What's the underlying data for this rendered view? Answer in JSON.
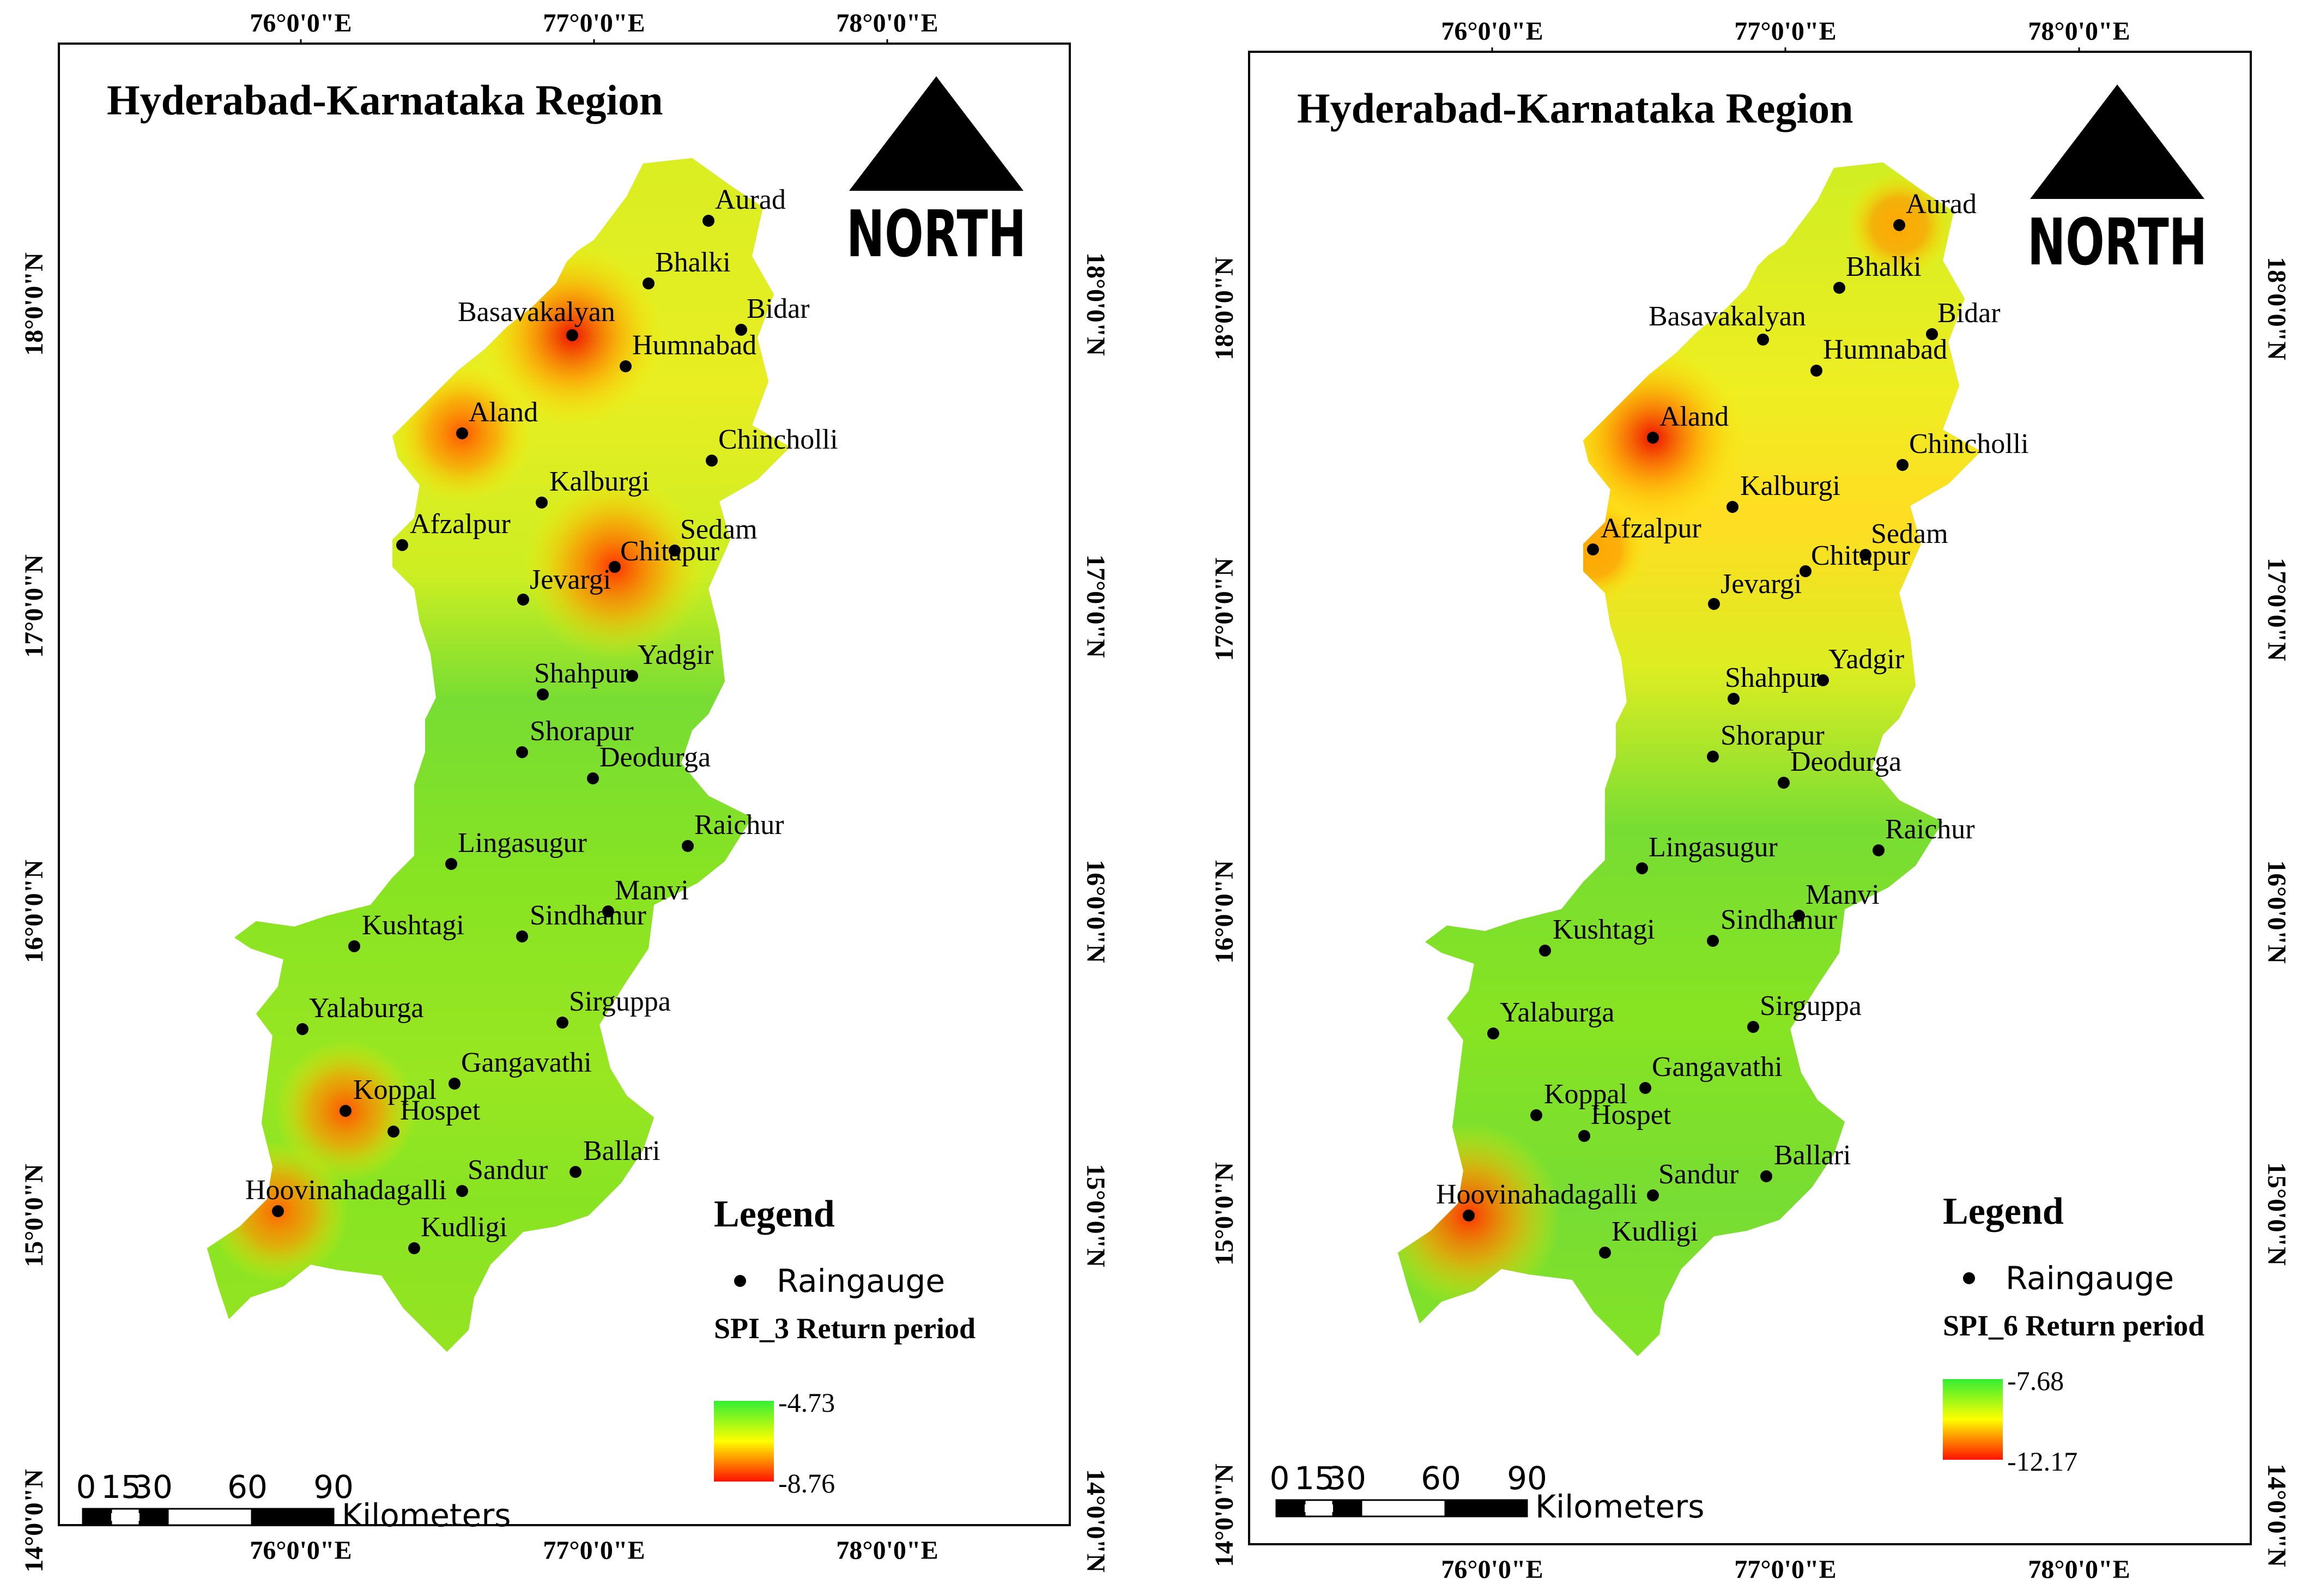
{
  "maps": [
    {
      "id": "spi3",
      "title": "Hyderabad-Karnataka Region",
      "north_label": "NORTH",
      "lon_ticks": [
        "76°0'0\"E",
        "77°0'0\"E",
        "78°0'0\"E"
      ],
      "lat_ticks": [
        "18°0'0\"N",
        "17°0'0\"N",
        "16°0'0\"N",
        "15°0'0\"N",
        "14°0'0\"N"
      ],
      "legend": {
        "heading": "Legend",
        "point_label": "Raingauge",
        "ramp_title": "SPI_3 Return period",
        "ramp_max": "-4.73",
        "ramp_min": "-8.76",
        "colors": [
          "#33ee33",
          "#ffff00",
          "#ff0000"
        ]
      },
      "scale": {
        "labels": [
          "0",
          "15",
          "30",
          "60",
          "90"
        ],
        "unit": "Kilometers"
      },
      "hotspots": [
        {
          "station": "Basavakalyan",
          "color": "#ee1100",
          "intensity": "high"
        },
        {
          "station": "Aland",
          "color": "#ff5500",
          "intensity": "medium"
        },
        {
          "station": "Chitapur",
          "color": "#ff3300",
          "intensity": "high"
        },
        {
          "station": "Koppal",
          "color": "#ff5500",
          "intensity": "medium"
        },
        {
          "station": "Hoovinahadagalli",
          "color": "#ff6600",
          "intensity": "medium"
        }
      ],
      "stations": [
        "Aurad",
        "Bhalki",
        "Bidar",
        "Basavakalyan",
        "Humnabad",
        "Aland",
        "Chincholli",
        "Kalburgi",
        "Afzalpur",
        "Sedam",
        "Chitapur",
        "Jevargi",
        "Yadgir",
        "Shahpur",
        "Shorapur",
        "Deodurga",
        "Raichur",
        "Lingasugur",
        "Manvi",
        "Kushtagi",
        "Sindhanur",
        "Yalaburga",
        "Sirguppa",
        "Gangavathi",
        "Koppal",
        "Hospet",
        "Ballari",
        "Sandur",
        "Hoovinahadagalli",
        "Kudligi"
      ]
    },
    {
      "id": "spi6",
      "title": "Hyderabad-Karnataka Region",
      "north_label": "NORTH",
      "lon_ticks": [
        "76°0'0\"E",
        "77°0'0\"E",
        "78°0'0\"E"
      ],
      "lat_ticks": [
        "18°0'0\"N",
        "17°0'0\"N",
        "16°0'0\"N",
        "15°0'0\"N",
        "14°0'0\"N"
      ],
      "legend": {
        "heading": "Legend",
        "point_label": "Raingauge",
        "ramp_title": "SPI_6 Return period",
        "ramp_max": "-7.68",
        "ramp_min": "-12.17",
        "colors": [
          "#33ee33",
          "#ffff00",
          "#ff0000"
        ]
      },
      "scale": {
        "labels": [
          "0",
          "15",
          "30",
          "60",
          "90"
        ],
        "unit": "Kilometers"
      },
      "hotspots": [
        {
          "station": "Aland",
          "color": "#ee1100",
          "intensity": "high"
        },
        {
          "station": "Afzalpur",
          "color": "#ffaa00",
          "intensity": "low"
        },
        {
          "station": "Hoovinahadagalli",
          "color": "#ff3300",
          "intensity": "high"
        },
        {
          "station": "Aurad",
          "color": "#ffaa00",
          "intensity": "low"
        }
      ],
      "stations": [
        "Aurad",
        "Bhalki",
        "Bidar",
        "Basavakalyan",
        "Humnabad",
        "Aland",
        "Chincholli",
        "Kalburgi",
        "Afzalpur",
        "Sedam",
        "Chitapur",
        "Jevargi",
        "Yadgir",
        "Shahpur",
        "Shorapur",
        "Deodurga",
        "Raichur",
        "Lingasugur",
        "Manvi",
        "Kushtagi",
        "Sindhanur",
        "Yalaburga",
        "Sirguppa",
        "Gangavathi",
        "Koppal",
        "Hospet",
        "Ballari",
        "Sandur",
        "Hoovinahadagalli",
        "Kudligi"
      ]
    }
  ]
}
